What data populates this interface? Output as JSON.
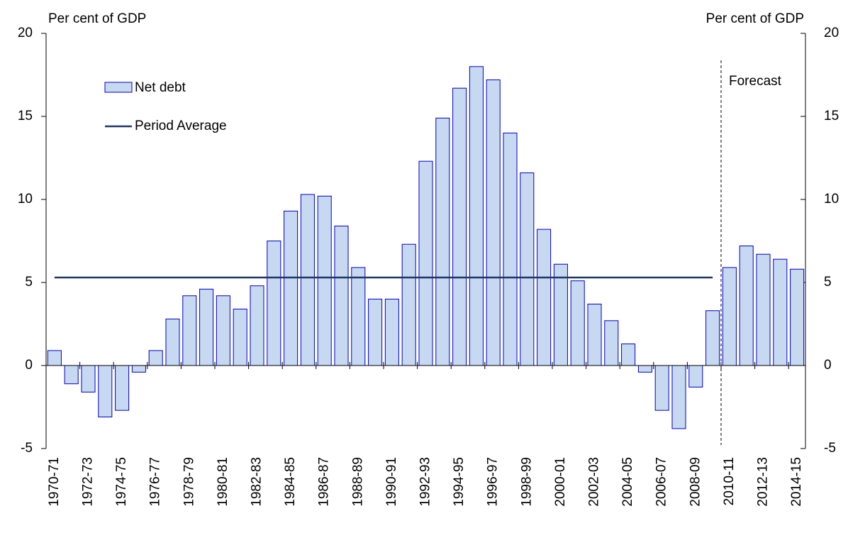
{
  "chart_data": {
    "type": "bar",
    "ylabel": "Per cent of GDP",
    "y2label": "Per cent of GDP",
    "forecast_label": "Forecast",
    "categories": [
      "1970-71",
      null,
      "1972-73",
      null,
      "1974-75",
      null,
      "1976-77",
      null,
      "1978-79",
      null,
      "1980-81",
      null,
      "1982-83",
      null,
      "1984-85",
      null,
      "1986-87",
      null,
      "1988-89",
      null,
      "1990-91",
      null,
      "1992-93",
      null,
      "1994-95",
      null,
      "1996-97",
      null,
      "1998-99",
      null,
      "2000-01",
      null,
      "2002-03",
      null,
      "2004-05",
      null,
      "2006-07",
      null,
      "2008-09",
      null,
      "2010-11",
      null,
      "2012-13",
      null,
      "2014-15"
    ],
    "series": [
      {
        "name": "Net debt",
        "type": "bar",
        "color": "#c6d9f1",
        "edge_color": "#0000cc",
        "values": [
          0.9,
          -1.1,
          -1.6,
          -3.1,
          -2.7,
          -0.4,
          0.9,
          2.8,
          4.2,
          4.6,
          4.2,
          3.4,
          4.8,
          7.5,
          9.3,
          10.3,
          10.2,
          8.4,
          5.9,
          4.0,
          4.0,
          7.3,
          12.3,
          14.9,
          16.7,
          18.0,
          17.2,
          14.0,
          11.6,
          8.2,
          6.1,
          5.1,
          3.7,
          2.7,
          1.3,
          -0.4,
          -2.7,
          -3.8,
          -1.3,
          3.3,
          5.9,
          7.2,
          6.7,
          6.4,
          5.8
        ]
      },
      {
        "name": "Period Average",
        "type": "line",
        "color": "#1f3864",
        "values": [
          5.3,
          5.3,
          5.3,
          5.3,
          5.3,
          5.3,
          5.3,
          5.3,
          5.3,
          5.3,
          5.3,
          5.3,
          5.3,
          5.3,
          5.3,
          5.3,
          5.3,
          5.3,
          5.3,
          5.3,
          5.3,
          5.3,
          5.3,
          5.3,
          5.3,
          5.3,
          5.3,
          5.3,
          5.3,
          5.3,
          5.3,
          5.3,
          5.3,
          5.3,
          5.3,
          5.3,
          5.3,
          5.3,
          5.3,
          5.3,
          null,
          null,
          null,
          null,
          null
        ]
      }
    ],
    "ylim": [
      -5,
      20
    ],
    "yticks": [
      -5,
      0,
      5,
      10,
      15,
      20
    ],
    "y2lim": [
      -5,
      20
    ],
    "y2ticks": [
      -5,
      0,
      5,
      10,
      15,
      20
    ],
    "legend": "upper left"
  }
}
